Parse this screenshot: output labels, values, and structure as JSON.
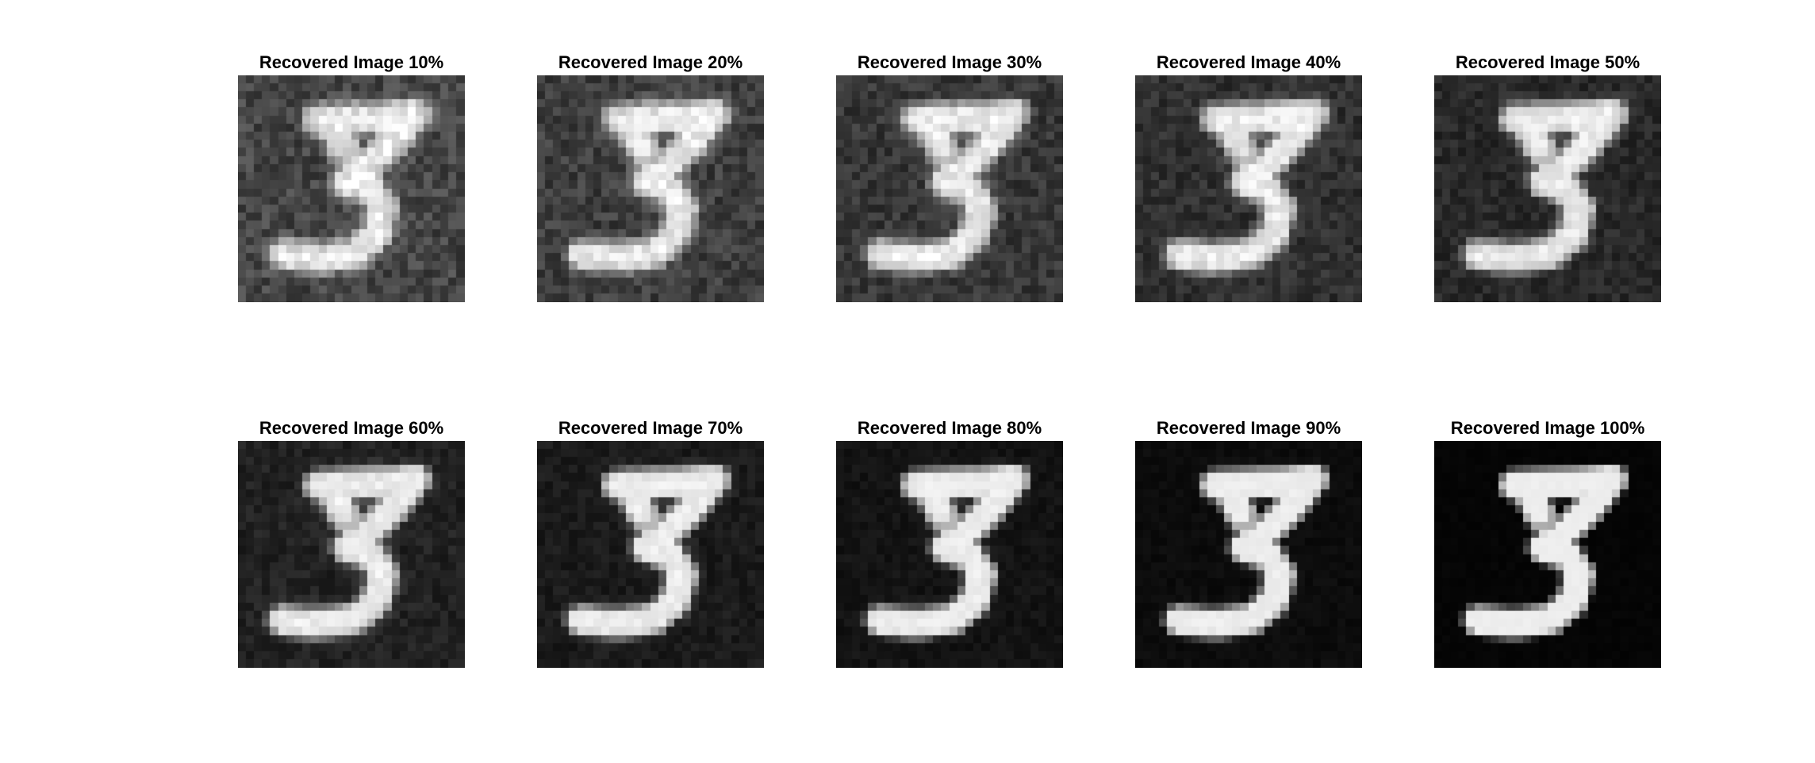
{
  "figure": {
    "panels": [
      {
        "title": "Recovered Image 10%",
        "fraction": 0.1
      },
      {
        "title": "Recovered Image 20%",
        "fraction": 0.2
      },
      {
        "title": "Recovered Image 30%",
        "fraction": 0.3
      },
      {
        "title": "Recovered Image 40%",
        "fraction": 0.4
      },
      {
        "title": "Recovered Image 50%",
        "fraction": 0.5
      },
      {
        "title": "Recovered Image 60%",
        "fraction": 0.6
      },
      {
        "title": "Recovered Image 70%",
        "fraction": 0.7
      },
      {
        "title": "Recovered Image 80%",
        "fraction": 0.8
      },
      {
        "title": "Recovered Image 90%",
        "fraction": 0.9
      },
      {
        "title": "Recovered Image 100%",
        "fraction": 1.0
      }
    ],
    "subject": "handwritten-digit-3",
    "colormap": "grayscale"
  }
}
